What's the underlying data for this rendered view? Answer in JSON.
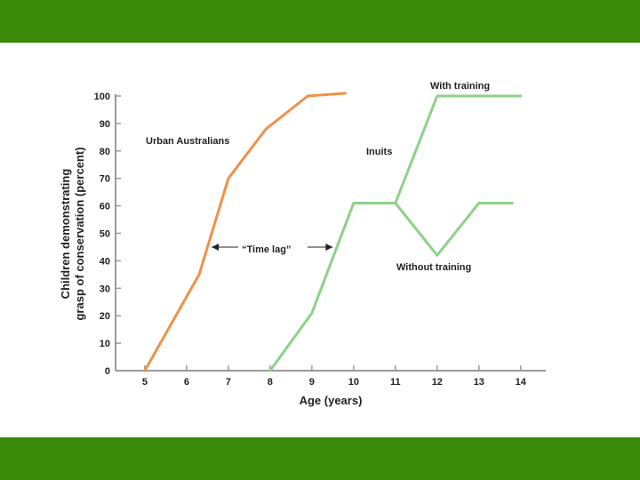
{
  "slide": {
    "band_color": "#3a8a0a",
    "background": "#ffffff"
  },
  "chart_data": {
    "type": "line",
    "xlabel": "Age (years)",
    "ylabel_lines": [
      "Children demonstrating",
      "grasp of conservation (percent)"
    ],
    "xlim": [
      4.3,
      14.6
    ],
    "ylim": [
      0,
      100
    ],
    "x_ticks": [
      5,
      6,
      7,
      8,
      9,
      10,
      11,
      12,
      13,
      14
    ],
    "y_ticks": [
      0,
      10,
      20,
      30,
      40,
      50,
      60,
      70,
      80,
      90,
      100
    ],
    "grid": false,
    "series": [
      {
        "key": "urban",
        "name": "Urban Australians",
        "color": "#f0914a",
        "points": [
          [
            5,
            0
          ],
          [
            6.3,
            35
          ],
          [
            7,
            70
          ],
          [
            7.9,
            88
          ],
          [
            8.9,
            100
          ],
          [
            9.8,
            101
          ]
        ]
      },
      {
        "key": "inuit_shared",
        "name": "Inuits",
        "color": "#8fd08a",
        "points": [
          [
            8,
            0
          ],
          [
            9,
            21
          ],
          [
            10,
            61
          ],
          [
            11,
            61
          ]
        ]
      },
      {
        "key": "with_training",
        "name": "With training",
        "color": "#8fd08a",
        "points": [
          [
            11,
            61
          ],
          [
            12,
            100
          ],
          [
            14,
            100
          ]
        ]
      },
      {
        "key": "without_training",
        "name": "Without training",
        "color": "#8fd08a",
        "points": [
          [
            11,
            61
          ],
          [
            12,
            42
          ],
          [
            13,
            61
          ],
          [
            13.8,
            61
          ]
        ]
      }
    ],
    "annotations": {
      "urban": "Urban Australians",
      "inuits": "Inuits",
      "with_training": "With training",
      "without_training": "Without training",
      "time_lag": "“Time lag”"
    },
    "time_lag_arrow": {
      "from_x": 6.6,
      "to_x": 9.5,
      "y": 45
    }
  }
}
